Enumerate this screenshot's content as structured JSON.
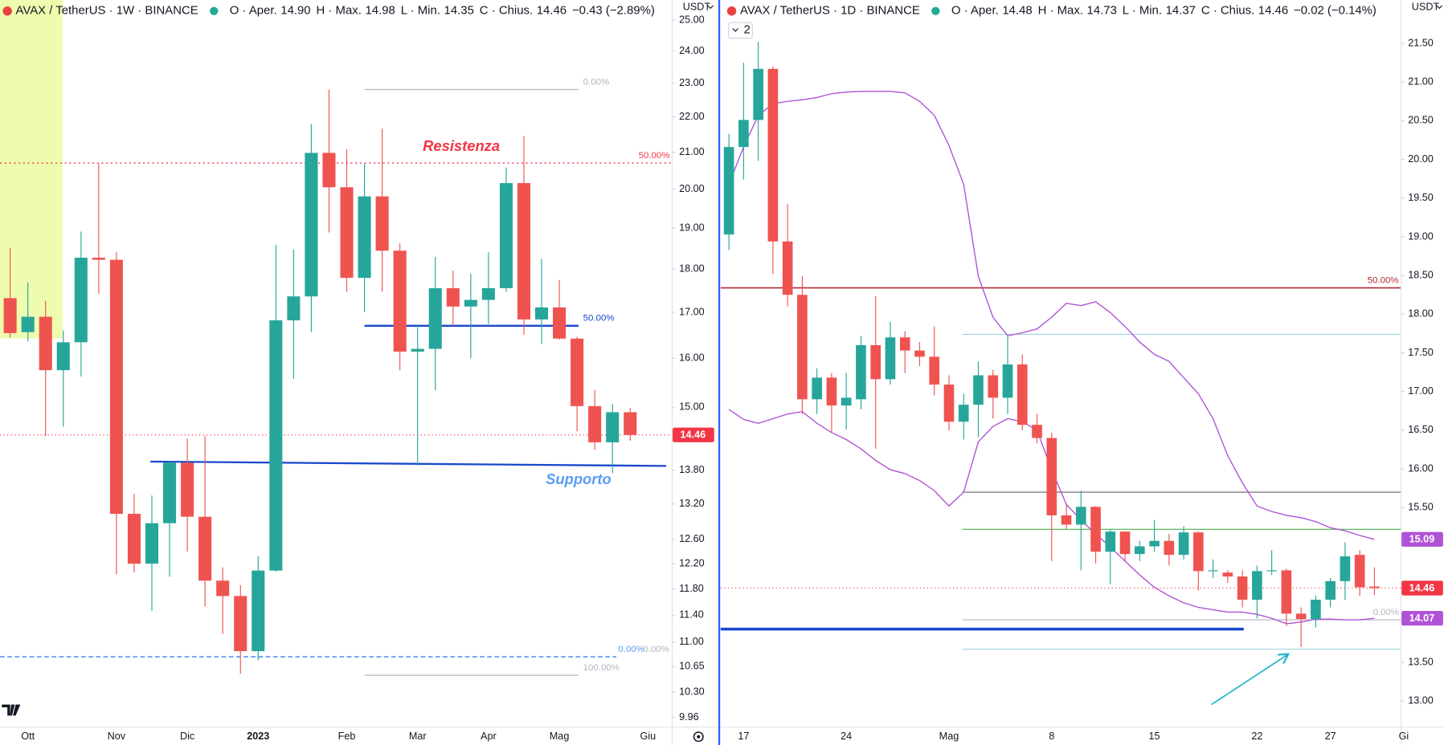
{
  "chart_data": [
    {
      "type": "candlestick",
      "header": {
        "symbol": "AVAX / TetherUS · 1W · BINANCE",
        "fields": [
          {
            "name": "O · Aper.",
            "value": "14.90"
          },
          {
            "name": "H · Max.",
            "value": "14.98"
          },
          {
            "name": "L · Min.",
            "value": "14.35"
          },
          {
            "name": "C · Chius.",
            "value": "14.46"
          }
        ],
        "change": "−0.43 (−2.89%)"
      },
      "y_unit": "USDT",
      "log_scale": true,
      "ylim": [
        9.84,
        25.67
      ],
      "yticks": [
        {
          "value": 25,
          "label": "25.00"
        },
        {
          "value": 24,
          "label": "24.00"
        },
        {
          "value": 23,
          "label": "23.00"
        },
        {
          "value": 22,
          "label": "22.00"
        },
        {
          "value": 21,
          "label": "21.00"
        },
        {
          "value": 20,
          "label": "20.00"
        },
        {
          "value": 19,
          "label": "19.00"
        },
        {
          "value": 18,
          "label": "18.00"
        },
        {
          "value": 17,
          "label": "17.00"
        },
        {
          "value": 16,
          "label": "16.00"
        },
        {
          "value": 15,
          "label": "15.00"
        },
        {
          "value": 13.8,
          "label": "13.80"
        },
        {
          "value": 13.2,
          "label": "13.20"
        },
        {
          "value": 12.6,
          "label": "12.60"
        },
        {
          "value": 12.2,
          "label": "12.20"
        },
        {
          "value": 11.8,
          "label": "11.80"
        },
        {
          "value": 11.4,
          "label": "11.40"
        },
        {
          "value": 11,
          "label": "11.00"
        },
        {
          "value": 10.65,
          "label": "10.65"
        },
        {
          "value": 10.3,
          "label": "10.30"
        },
        {
          "value": 9.96,
          "label": "9.96"
        }
      ],
      "xticks": [
        {
          "value": 1,
          "label": "Ott"
        },
        {
          "value": 6,
          "label": "Nov"
        },
        {
          "value": 10,
          "label": "Dic"
        },
        {
          "value": 14,
          "label": "2023"
        },
        {
          "value": 19,
          "label": "Feb"
        },
        {
          "value": 23,
          "label": "Mar"
        },
        {
          "value": 27,
          "label": "Apr"
        },
        {
          "value": 31,
          "label": "Mag"
        },
        {
          "value": 36,
          "label": "Giu"
        }
      ],
      "up_color": "#26a69a",
      "down_color": "#ef5350",
      "ohlc": {
        "open": [
          17.32,
          16.56,
          16.9,
          15.75,
          16.34,
          18.27,
          18.22,
          13.03,
          12.2,
          12.87,
          13.94,
          12.98,
          11.93,
          11.69,
          10.87,
          12.09,
          16.82,
          17.36,
          20.98,
          20.05,
          17.79,
          19.81,
          18.44,
          16.14,
          16.2,
          17.55,
          17.13,
          17.28,
          17.55,
          20.16,
          16.84,
          17.11,
          16.42,
          15.02,
          14.32,
          14.9
        ],
        "high": [
          18.51,
          17.68,
          17.26,
          16.6,
          18.91,
          20.68,
          18.4,
          13.38,
          13.35,
          13.96,
          14.39,
          14.44,
          12.14,
          11.86,
          12.32,
          18.58,
          18.47,
          21.79,
          22.81,
          21.08,
          20.68,
          21.66,
          18.62,
          16.7,
          18.29,
          17.96,
          17.89,
          18.4,
          20.58,
          21.45,
          18.24,
          17.74,
          16.46,
          15.34,
          15.06,
          14.98
        ],
        "low": [
          16.44,
          16.36,
          14.44,
          14.62,
          15.62,
          17.42,
          12.03,
          12.06,
          11.46,
          11.99,
          12.4,
          11.53,
          11.12,
          10.55,
          10.74,
          12.07,
          15.57,
          16.56,
          18.89,
          17.47,
          17.0,
          17.47,
          15.75,
          13.89,
          15.34,
          16.7,
          16.0,
          16.74,
          17.47,
          16.5,
          16.3,
          16.4,
          14.53,
          14.18,
          13.75,
          14.35
        ],
        "close": [
          16.54,
          16.9,
          15.75,
          16.34,
          18.27,
          18.22,
          13.03,
          12.2,
          12.87,
          13.94,
          12.98,
          11.93,
          11.69,
          10.87,
          12.09,
          16.82,
          17.36,
          20.98,
          20.05,
          17.79,
          19.81,
          18.44,
          16.14,
          16.2,
          17.55,
          17.13,
          17.28,
          17.55,
          20.16,
          16.84,
          17.11,
          16.42,
          15.02,
          14.32,
          14.9,
          14.46
        ]
      },
      "levels": [
        {
          "label": "0.00%",
          "value": 22.81,
          "color": "#b2b5be"
        },
        {
          "label": "50.00%",
          "value": 20.7,
          "color": "#f23645"
        },
        {
          "label": "50.00%",
          "value": 16.7,
          "color": "#1848cc"
        },
        {
          "label": "0.00%",
          "value": 10.79,
          "color": "#5b9cf6"
        },
        {
          "label": "0.00%",
          "value": 10.79,
          "color": "#b2b5be"
        },
        {
          "label": "100.00%",
          "value": 10.53,
          "color": "#b2b5be"
        }
      ],
      "trendlines": [
        {
          "values": [
            13.96,
            13.88
          ],
          "color": "#1848cc"
        }
      ],
      "annotations": [
        {
          "text": "Resistenza",
          "color": "#f23645"
        },
        {
          "text": "Supporto",
          "color": "#5b9cf6"
        }
      ],
      "price_labels": [
        {
          "label": "14.46",
          "value": 14.46,
          "color": "#f23645",
          "line": true
        }
      ]
    },
    {
      "type": "candlestick",
      "header": {
        "symbol": "AVAX / TetherUS · 1D · BINANCE",
        "fields": [
          {
            "name": "O · Aper.",
            "value": "14.48"
          },
          {
            "name": "H · Max.",
            "value": "14.73"
          },
          {
            "name": "L · Min.",
            "value": "14.37"
          },
          {
            "name": "C · Chius.",
            "value": "14.46"
          }
        ],
        "change": "−0.02 (−0.14%)",
        "badge": "2"
      },
      "y_unit": "USDT",
      "log_scale": false,
      "ylim": [
        12.67,
        22.06
      ],
      "yticks": [
        {
          "value": 21.5,
          "label": "21.50"
        },
        {
          "value": 21,
          "label": "21.00"
        },
        {
          "value": 20.5,
          "label": "20.50"
        },
        {
          "value": 20,
          "label": "20.00"
        },
        {
          "value": 19.5,
          "label": "19.50"
        },
        {
          "value": 19,
          "label": "19.00"
        },
        {
          "value": 18.5,
          "label": "18.50"
        },
        {
          "value": 18,
          "label": "18.00"
        },
        {
          "value": 17.5,
          "label": "17.50"
        },
        {
          "value": 17,
          "label": "17.00"
        },
        {
          "value": 16.5,
          "label": "16.50"
        },
        {
          "value": 16,
          "label": "16.00"
        },
        {
          "value": 15.5,
          "label": "15.50"
        },
        {
          "value": 13.5,
          "label": "13.50"
        },
        {
          "value": 13,
          "label": "13.00"
        }
      ],
      "xticks": [
        {
          "value": 1,
          "label": "17"
        },
        {
          "value": 8,
          "label": "24"
        },
        {
          "value": 15,
          "label": "Mag"
        },
        {
          "value": 22,
          "label": "8"
        },
        {
          "value": 29,
          "label": "15"
        },
        {
          "value": 36,
          "label": "22"
        },
        {
          "value": 41,
          "label": "27"
        },
        {
          "value": 46,
          "label": "Gi"
        }
      ],
      "up_color": "#26a69a",
      "down_color": "#ef5350",
      "ohlc": {
        "open": [
          19.03,
          20.16,
          20.51,
          21.17,
          18.94,
          18.25,
          16.9,
          17.18,
          16.82,
          16.9,
          17.6,
          17.16,
          17.7,
          17.53,
          17.45,
          17.09,
          16.61,
          16.83,
          17.21,
          16.92,
          17.35,
          16.57,
          16.4,
          15.4,
          15.28,
          15.51,
          14.93,
          15.19,
          14.9,
          15.0,
          15.07,
          14.89,
          15.18,
          14.68,
          14.66,
          14.61,
          14.31,
          14.68,
          14.69,
          14.13,
          14.06,
          14.31,
          14.55,
          14.89,
          14.48
        ],
        "high": [
          20.33,
          21.25,
          21.52,
          21.2,
          19.42,
          18.49,
          17.3,
          17.24,
          17.24,
          17.72,
          18.23,
          17.9,
          17.78,
          17.64,
          17.84,
          17.21,
          16.97,
          17.39,
          17.28,
          17.72,
          17.48,
          16.71,
          16.47,
          15.54,
          15.72,
          15.52,
          15.22,
          15.19,
          15.07,
          15.34,
          15.16,
          15.26,
          15.19,
          14.83,
          14.69,
          14.69,
          14.75,
          14.95,
          14.71,
          14.21,
          14.36,
          14.59,
          15.05,
          14.95,
          14.73
        ],
        "low": [
          18.83,
          19.74,
          19.98,
          18.52,
          18.1,
          16.71,
          16.71,
          16.47,
          16.51,
          16.77,
          16.26,
          17.09,
          17.24,
          17.33,
          16.95,
          16.5,
          16.38,
          16.41,
          16.65,
          16.71,
          16.5,
          16.33,
          14.81,
          15.22,
          14.69,
          14.78,
          14.51,
          14.81,
          14.81,
          14.93,
          14.75,
          14.83,
          14.43,
          14.59,
          14.53,
          14.21,
          14.07,
          14.63,
          13.97,
          13.7,
          13.95,
          14.21,
          14.31,
          14.36,
          14.37
        ],
        "close": [
          20.16,
          20.51,
          21.17,
          18.94,
          18.25,
          16.9,
          17.18,
          16.82,
          16.92,
          17.6,
          17.16,
          17.7,
          17.53,
          17.45,
          17.09,
          16.61,
          16.83,
          17.21,
          16.92,
          17.35,
          16.57,
          16.4,
          15.4,
          15.28,
          15.51,
          14.93,
          15.19,
          14.9,
          15.0,
          15.07,
          14.89,
          15.18,
          14.68,
          14.69,
          14.61,
          14.31,
          14.68,
          14.69,
          14.13,
          14.06,
          14.31,
          14.55,
          14.87,
          14.47,
          14.46
        ]
      },
      "indicators": [
        {
          "color": "#b052d6",
          "values": [
            19.68,
            20.16,
            20.57,
            20.72,
            20.75,
            20.77,
            20.8,
            20.85,
            20.87,
            20.88,
            20.88,
            20.88,
            20.86,
            20.75,
            20.57,
            20.18,
            19.68,
            18.49,
            17.96,
            17.72,
            17.76,
            17.81,
            17.96,
            18.14,
            18.11,
            18.16,
            18.02,
            17.84,
            17.64,
            17.48,
            17.39,
            17.18,
            16.97,
            16.65,
            16.17,
            15.82,
            15.52,
            15.45,
            15.4,
            15.37,
            15.32,
            15.24,
            15.2,
            15.14,
            15.09
          ]
        },
        {
          "color": "#b052d6",
          "values": [
            16.77,
            16.64,
            16.59,
            16.65,
            16.71,
            16.74,
            16.59,
            16.47,
            16.38,
            16.26,
            16.11,
            15.99,
            15.94,
            15.85,
            15.72,
            15.52,
            15.7,
            16.35,
            16.55,
            16.65,
            16.61,
            16.5,
            15.99,
            15.54,
            15.34,
            15.16,
            14.99,
            14.81,
            14.63,
            14.47,
            14.36,
            14.27,
            14.21,
            14.18,
            14.15,
            14.15,
            14.12,
            14.07,
            14.0,
            14.02,
            14.06,
            14.06,
            14.05,
            14.05,
            14.07
          ]
        }
      ],
      "levels": [
        {
          "label": "50.00%",
          "value": 18.34,
          "color": "#b22833"
        },
        {
          "value": 13.93,
          "color": "#1848cc"
        },
        {
          "value": 17.74,
          "color": "#9ed6e0"
        },
        {
          "value": 15.7,
          "color": "#5d606b"
        },
        {
          "value": 15.22,
          "color": "#4caf50"
        },
        {
          "label": "0.00%",
          "value": 14.05,
          "color": "#b2b5be"
        },
        {
          "value": 13.67,
          "color": "#9ed6e0"
        }
      ],
      "price_labels": [
        {
          "label": "15.09",
          "value": 15.09,
          "color": "#b052d6"
        },
        {
          "label": "14.46",
          "value": 14.46,
          "color": "#f23645",
          "line": true
        },
        {
          "label": "14.07",
          "value": 14.07,
          "color": "#b052d6"
        }
      ]
    }
  ]
}
